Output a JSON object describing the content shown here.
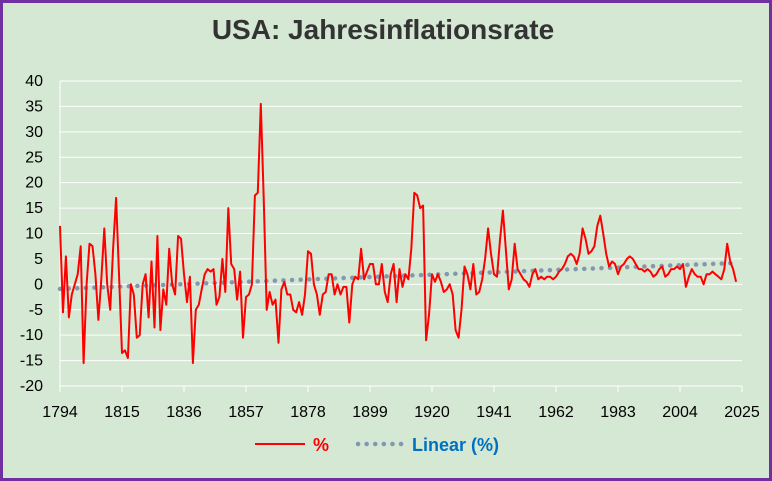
{
  "chart_data": {
    "type": "line",
    "title": "USA: Jahresinflationsrate",
    "xlabel": "",
    "ylabel": "",
    "xlim": [
      1794,
      2025
    ],
    "ylim": [
      -20,
      40
    ],
    "x_ticks": [
      1794,
      1815,
      1836,
      1857,
      1878,
      1899,
      1920,
      1941,
      1962,
      1983,
      2004,
      2025
    ],
    "y_ticks": [
      -20,
      -15,
      -10,
      -5,
      0,
      5,
      10,
      15,
      20,
      25,
      30,
      35,
      40
    ],
    "grid": true,
    "legend_position": "bottom",
    "series": [
      {
        "name": "%",
        "color": "#ff0000",
        "style": "solid",
        "points": [
          [
            1794,
            11.5
          ],
          [
            1795,
            -5.5
          ],
          [
            1796,
            5.5
          ],
          [
            1797,
            -6.5
          ],
          [
            1798,
            -2
          ],
          [
            1799,
            0
          ],
          [
            1800,
            2
          ],
          [
            1801,
            7.5
          ],
          [
            1802,
            -15.5
          ],
          [
            1803,
            0
          ],
          [
            1804,
            8
          ],
          [
            1805,
            7.5
          ],
          [
            1806,
            2
          ],
          [
            1807,
            -7
          ],
          [
            1808,
            1
          ],
          [
            1809,
            11
          ],
          [
            1810,
            0
          ],
          [
            1811,
            -5
          ],
          [
            1812,
            7
          ],
          [
            1813,
            17
          ],
          [
            1814,
            2
          ],
          [
            1815,
            -13.5
          ],
          [
            1816,
            -13
          ],
          [
            1817,
            -14.5
          ],
          [
            1818,
            0
          ],
          [
            1819,
            -2
          ],
          [
            1820,
            -10.5
          ],
          [
            1821,
            -10
          ],
          [
            1822,
            0
          ],
          [
            1823,
            2
          ],
          [
            1824,
            -6.5
          ],
          [
            1825,
            4.5
          ],
          [
            1826,
            -8.5
          ],
          [
            1827,
            9.5
          ],
          [
            1828,
            -9
          ],
          [
            1829,
            -1
          ],
          [
            1830,
            -4
          ],
          [
            1831,
            7
          ],
          [
            1832,
            0
          ],
          [
            1833,
            -2
          ],
          [
            1834,
            9.5
          ],
          [
            1835,
            9
          ],
          [
            1836,
            2
          ],
          [
            1837,
            -3.5
          ],
          [
            1838,
            1.5
          ],
          [
            1839,
            -15.5
          ],
          [
            1840,
            -5
          ],
          [
            1841,
            -4
          ],
          [
            1842,
            -1
          ],
          [
            1843,
            2
          ],
          [
            1844,
            3
          ],
          [
            1845,
            2.5
          ],
          [
            1846,
            3
          ],
          [
            1847,
            -4
          ],
          [
            1848,
            -2.5
          ],
          [
            1849,
            5
          ],
          [
            1850,
            -1.5
          ],
          [
            1851,
            15
          ],
          [
            1852,
            4
          ],
          [
            1853,
            3
          ],
          [
            1854,
            -3
          ],
          [
            1855,
            2.5
          ],
          [
            1856,
            -10.5
          ],
          [
            1857,
            -2.5
          ],
          [
            1858,
            -2
          ],
          [
            1859,
            0
          ],
          [
            1860,
            17.5
          ],
          [
            1861,
            18
          ],
          [
            1862,
            35.5
          ],
          [
            1863,
            17
          ],
          [
            1864,
            -5
          ],
          [
            1865,
            -1.5
          ],
          [
            1866,
            -4
          ],
          [
            1867,
            -3
          ],
          [
            1868,
            -11.5
          ],
          [
            1869,
            -1
          ],
          [
            1870,
            0.5
          ],
          [
            1871,
            -2
          ],
          [
            1872,
            -2
          ],
          [
            1873,
            -5
          ],
          [
            1874,
            -5.5
          ],
          [
            1875,
            -3.5
          ],
          [
            1876,
            -6
          ],
          [
            1877,
            -2
          ],
          [
            1878,
            6.5
          ],
          [
            1879,
            6
          ],
          [
            1880,
            0
          ],
          [
            1881,
            -2
          ],
          [
            1882,
            -6
          ],
          [
            1883,
            -2
          ],
          [
            1884,
            -1.5
          ],
          [
            1885,
            2
          ],
          [
            1886,
            2
          ],
          [
            1887,
            -2
          ],
          [
            1888,
            0
          ],
          [
            1889,
            -2
          ],
          [
            1890,
            -0.5
          ],
          [
            1891,
            -0.5
          ],
          [
            1892,
            -7.5
          ],
          [
            1893,
            0
          ],
          [
            1894,
            1.5
          ],
          [
            1895,
            1
          ],
          [
            1896,
            7
          ],
          [
            1897,
            1
          ],
          [
            1898,
            2.5
          ],
          [
            1899,
            4
          ],
          [
            1900,
            4
          ],
          [
            1901,
            0
          ],
          [
            1902,
            0
          ],
          [
            1903,
            4
          ],
          [
            1904,
            -1.5
          ],
          [
            1905,
            -3.5
          ],
          [
            1906,
            2
          ],
          [
            1907,
            4
          ],
          [
            1908,
            -3.5
          ],
          [
            1909,
            3
          ],
          [
            1910,
            -0.5
          ],
          [
            1911,
            2
          ],
          [
            1912,
            1
          ],
          [
            1913,
            7
          ],
          [
            1914,
            18
          ],
          [
            1915,
            17.5
          ],
          [
            1916,
            15
          ],
          [
            1917,
            15.5
          ],
          [
            1918,
            -11
          ],
          [
            1919,
            -6
          ],
          [
            1920,
            2
          ],
          [
            1921,
            0.5
          ],
          [
            1922,
            2
          ],
          [
            1923,
            0.5
          ],
          [
            1924,
            -1.5
          ],
          [
            1925,
            -1
          ],
          [
            1926,
            0
          ],
          [
            1927,
            -2
          ],
          [
            1928,
            -9
          ],
          [
            1929,
            -10.5
          ],
          [
            1930,
            -5
          ],
          [
            1931,
            3.5
          ],
          [
            1932,
            2
          ],
          [
            1933,
            -1
          ],
          [
            1934,
            4
          ],
          [
            1935,
            -2
          ],
          [
            1936,
            -1.5
          ],
          [
            1937,
            1
          ],
          [
            1938,
            5
          ],
          [
            1939,
            11
          ],
          [
            1940,
            6
          ],
          [
            1941,
            2
          ],
          [
            1942,
            1.5
          ],
          [
            1943,
            8.5
          ],
          [
            1944,
            14.5
          ],
          [
            1945,
            7
          ],
          [
            1946,
            -1
          ],
          [
            1947,
            1
          ],
          [
            1948,
            8
          ],
          [
            1949,
            3
          ],
          [
            1950,
            2
          ],
          [
            1951,
            1
          ],
          [
            1952,
            0.5
          ],
          [
            1953,
            -0.5
          ],
          [
            1954,
            2
          ],
          [
            1955,
            3
          ],
          [
            1956,
            1
          ],
          [
            1957,
            1.5
          ],
          [
            1958,
            1
          ],
          [
            1959,
            1.5
          ],
          [
            1960,
            1.5
          ],
          [
            1961,
            1
          ],
          [
            1962,
            1.5
          ],
          [
            1963,
            2.5
          ],
          [
            1964,
            3
          ],
          [
            1965,
            4
          ],
          [
            1966,
            5.5
          ],
          [
            1967,
            6
          ],
          [
            1968,
            5.5
          ],
          [
            1969,
            4
          ],
          [
            1970,
            6
          ],
          [
            1971,
            11
          ],
          [
            1972,
            9
          ],
          [
            1973,
            6
          ],
          [
            1974,
            6.5
          ],
          [
            1975,
            7.5
          ],
          [
            1976,
            11.5
          ],
          [
            1977,
            13.5
          ],
          [
            1978,
            10
          ],
          [
            1979,
            6
          ],
          [
            1980,
            3.5
          ],
          [
            1981,
            4.5
          ],
          [
            1982,
            4
          ],
          [
            1983,
            2
          ],
          [
            1984,
            3.5
          ],
          [
            1985,
            4
          ],
          [
            1986,
            5
          ],
          [
            1987,
            5.5
          ],
          [
            1988,
            5
          ],
          [
            1989,
            4
          ],
          [
            1990,
            3
          ],
          [
            1991,
            3
          ],
          [
            1992,
            2.5
          ],
          [
            1993,
            3
          ],
          [
            1994,
            2.5
          ],
          [
            1995,
            1.5
          ],
          [
            1996,
            2
          ],
          [
            1997,
            3
          ],
          [
            1998,
            3.5
          ],
          [
            1999,
            1.5
          ],
          [
            2000,
            2
          ],
          [
            2001,
            3
          ],
          [
            2002,
            3
          ],
          [
            2003,
            3.5
          ],
          [
            2004,
            3
          ],
          [
            2005,
            4
          ],
          [
            2006,
            -0.5
          ],
          [
            2007,
            1.5
          ],
          [
            2008,
            3
          ],
          [
            2009,
            2
          ],
          [
            2010,
            1.5
          ],
          [
            2011,
            1.5
          ],
          [
            2012,
            0
          ],
          [
            2013,
            2
          ],
          [
            2014,
            2
          ],
          [
            2015,
            2.5
          ],
          [
            2016,
            2
          ],
          [
            2017,
            1.5
          ],
          [
            2018,
            1
          ],
          [
            2019,
            3
          ],
          [
            2020,
            8
          ],
          [
            2021,
            4.5
          ],
          [
            2022,
            3
          ],
          [
            2023,
            0.5
          ]
        ]
      },
      {
        "name": "Linear (%)",
        "color": "#8497b0",
        "style": "dotted",
        "points": [
          [
            1794,
            -0.9
          ],
          [
            2023,
            4.2
          ]
        ]
      }
    ]
  }
}
